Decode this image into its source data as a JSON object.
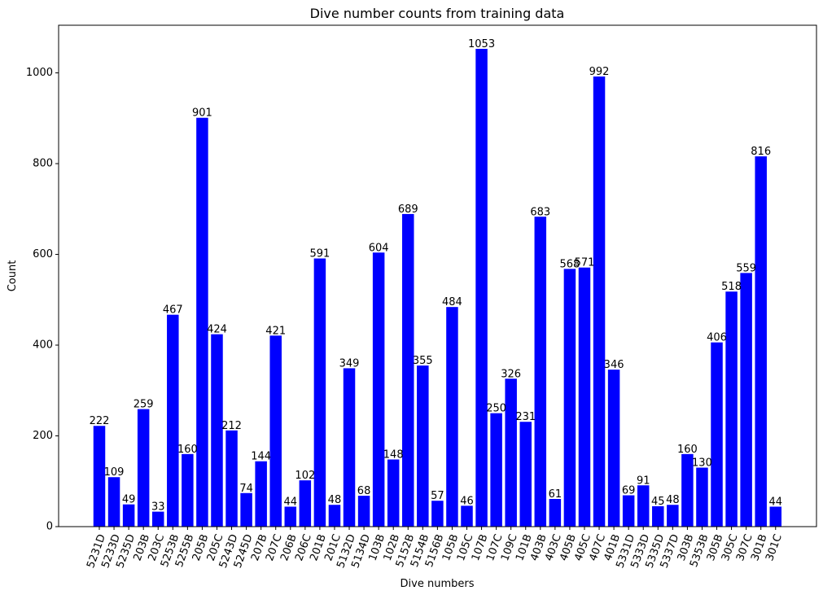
{
  "chart_data": {
    "type": "bar",
    "title": "Dive number counts from training data",
    "xlabel": "Dive numbers",
    "ylabel": "Count",
    "ylim": [
      0,
      1105
    ],
    "yticks": [
      0,
      200,
      400,
      600,
      800,
      1000
    ],
    "bar_color": "#0000ff",
    "grid": false,
    "categories": [
      "5231D",
      "5233D",
      "5235D",
      "203B",
      "203C",
      "5253B",
      "5255B",
      "205B",
      "205C",
      "5243D",
      "5245D",
      "207B",
      "207C",
      "206B",
      "206C",
      "201B",
      "201C",
      "5132D",
      "5134D",
      "103B",
      "102B",
      "5152B",
      "5154B",
      "5156B",
      "105B",
      "105C",
      "107B",
      "107C",
      "109C",
      "101B",
      "403B",
      "403C",
      "405B",
      "405C",
      "407C",
      "401B",
      "5331D",
      "5333D",
      "5335D",
      "5337D",
      "303B",
      "5353B",
      "305B",
      "305C",
      "307C",
      "301B",
      "301C"
    ],
    "values": [
      222,
      109,
      49,
      259,
      33,
      467,
      160,
      901,
      424,
      212,
      74,
      144,
      421,
      44,
      102,
      591,
      48,
      349,
      68,
      604,
      148,
      689,
      355,
      57,
      484,
      46,
      1053,
      250,
      326,
      231,
      683,
      61,
      568,
      571,
      992,
      346,
      69,
      91,
      45,
      48,
      160,
      130,
      406,
      518,
      559,
      816,
      44
    ]
  }
}
